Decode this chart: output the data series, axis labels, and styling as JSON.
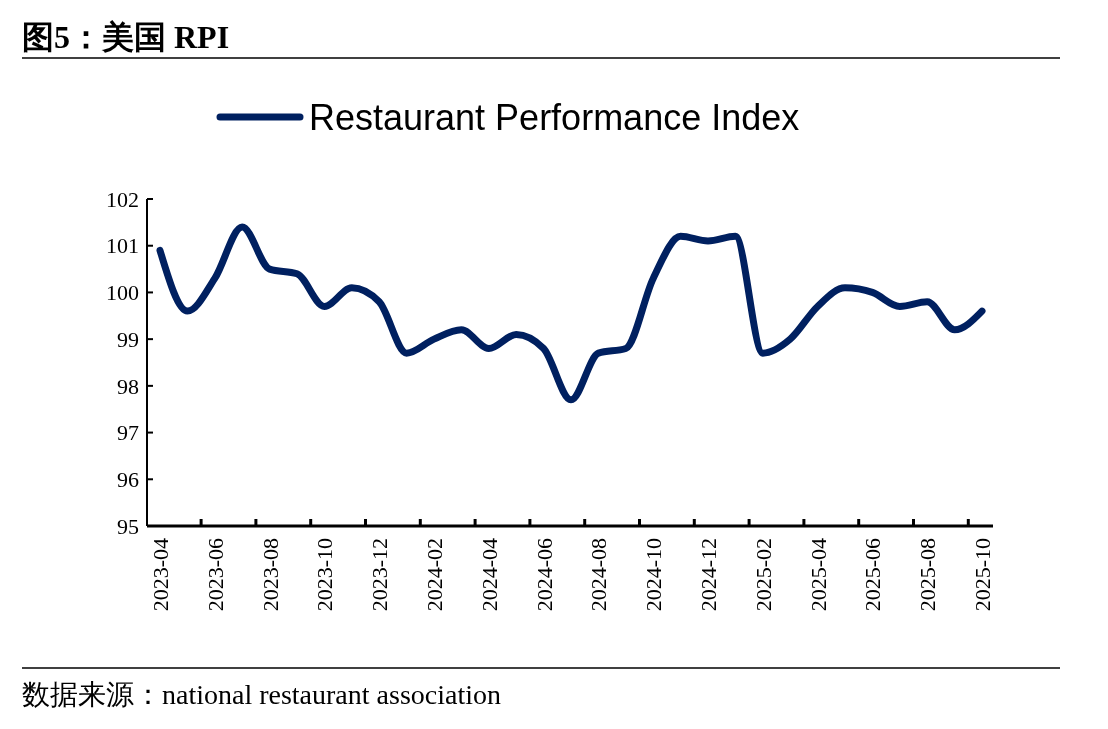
{
  "chart_data": {
    "type": "line",
    "title": "图5：美国 RPI",
    "categories": [
      "2023-04",
      null,
      "2023-06",
      null,
      "2023-08",
      null,
      "2023-10",
      null,
      "2023-12",
      null,
      "2024-02",
      null,
      "2024-04",
      null,
      "2024-06",
      null,
      "2024-08",
      null,
      "2024-10",
      null,
      "2024-12",
      null,
      "2025-02",
      null,
      "2025-04",
      null,
      "2025-06",
      null,
      "2025-08",
      null,
      "2025-10"
    ],
    "series": [
      {
        "name": "Restaurant Performance Index",
        "color": "#002060",
        "values": [
          100.9,
          99.6,
          100.3,
          101.4,
          100.5,
          100.4,
          99.7,
          100.1,
          99.8,
          98.7,
          99.0,
          99.2,
          98.8,
          99.1,
          98.8,
          97.7,
          98.7,
          98.8,
          100.3,
          101.2,
          101.1,
          101.2,
          98.7,
          99.0,
          99.7,
          100.1,
          100.0,
          99.7,
          99.8,
          99.2,
          99.6
        ]
      }
    ],
    "ylim": [
      95,
      102
    ],
    "yticks": [
      95,
      96,
      97,
      98,
      99,
      100,
      101,
      102
    ],
    "grid": false,
    "legend": "top",
    "marker": "none",
    "line_style": "solid",
    "annotations": [
      "数据来源：national restaurant association"
    ]
  }
}
